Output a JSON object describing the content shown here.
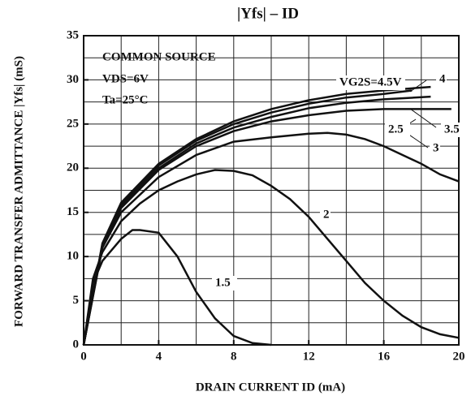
{
  "chart_data": {
    "type": "line",
    "title": "|Yfs| – ID",
    "x_label": "DRAIN CURRENT  ID  (mA)",
    "y_label": "FORWARD TRANSFER ADMITTANCE |Yfs| (mS)",
    "annotations": [
      "COMMON SOURCE",
      "VDS=6V",
      "Ta=25°C"
    ],
    "xlim": [
      0,
      20
    ],
    "ylim": [
      0,
      35
    ],
    "xticks": [
      0,
      4,
      8,
      12,
      16,
      20
    ],
    "yticks": [
      0,
      5,
      10,
      15,
      20,
      25,
      30,
      35
    ],
    "x_grid": [
      0,
      2,
      4,
      6,
      8,
      10,
      12,
      14,
      16,
      18,
      20
    ],
    "y_grid": [
      0,
      2.5,
      5,
      7.5,
      10,
      12.5,
      15,
      17.5,
      20,
      22.5,
      25,
      27.5,
      30,
      32.5,
      35
    ],
    "grid": true,
    "color": "#111111",
    "series": [
      {
        "name": "1.5",
        "x": [
          0,
          0.5,
          1,
          2,
          2.6,
          3,
          4,
          5,
          6,
          7,
          8,
          9,
          10
        ],
        "values": [
          0,
          7,
          9.5,
          12,
          13,
          13,
          12.7,
          10,
          6,
          3,
          1,
          0.2,
          0
        ]
      },
      {
        "name": "2",
        "x": [
          0,
          0.5,
          1,
          2,
          3,
          4,
          5,
          6,
          7,
          8,
          9,
          10,
          11,
          12,
          13,
          14,
          15,
          16,
          17,
          18,
          19,
          20
        ],
        "values": [
          0,
          7.5,
          10.5,
          14,
          16,
          17.5,
          18.5,
          19.3,
          19.8,
          19.7,
          19.2,
          18,
          16.5,
          14.5,
          12,
          9.5,
          7,
          5,
          3.3,
          2,
          1.2,
          0.8
        ]
      },
      {
        "name": "2.5",
        "x": [
          0,
          1,
          2,
          4,
          6,
          8,
          10,
          12,
          13,
          14,
          15,
          16,
          17,
          18,
          19,
          20
        ],
        "values": [
          0,
          11,
          15,
          19,
          21.5,
          23,
          23.5,
          23.9,
          24,
          23.8,
          23.3,
          22.5,
          21.5,
          20.5,
          19.3,
          18.5
        ]
      },
      {
        "name": "3",
        "x": [
          0,
          1,
          2,
          4,
          6,
          8,
          10,
          12,
          14,
          16,
          19.6
        ],
        "values": [
          0,
          11.2,
          15.5,
          19.8,
          22.5,
          24.2,
          25.3,
          26,
          26.5,
          26.7,
          26.7
        ]
      },
      {
        "name": "3.5",
        "x": [
          0,
          1,
          2,
          4,
          6,
          8,
          10,
          12,
          14,
          16,
          18.5
        ],
        "values": [
          0,
          11.3,
          15.8,
          20,
          22.8,
          24.6,
          25.8,
          26.8,
          27.4,
          27.8,
          28.1
        ]
      },
      {
        "name": "4",
        "x": [
          0,
          1,
          2,
          4,
          6,
          8,
          10,
          12,
          14,
          16,
          17.5
        ],
        "values": [
          0,
          11.4,
          16,
          20.3,
          23.1,
          25,
          26.3,
          27.3,
          28,
          28.4,
          28.8
        ]
      },
      {
        "name": "VG2S=4.5V",
        "x": [
          0,
          1,
          2,
          4,
          6,
          8,
          10,
          12,
          14,
          16,
          18.5
        ],
        "values": [
          0,
          11.5,
          16.1,
          20.5,
          23.3,
          25.3,
          26.7,
          27.7,
          28.4,
          28.8,
          29.2
        ]
      }
    ]
  }
}
